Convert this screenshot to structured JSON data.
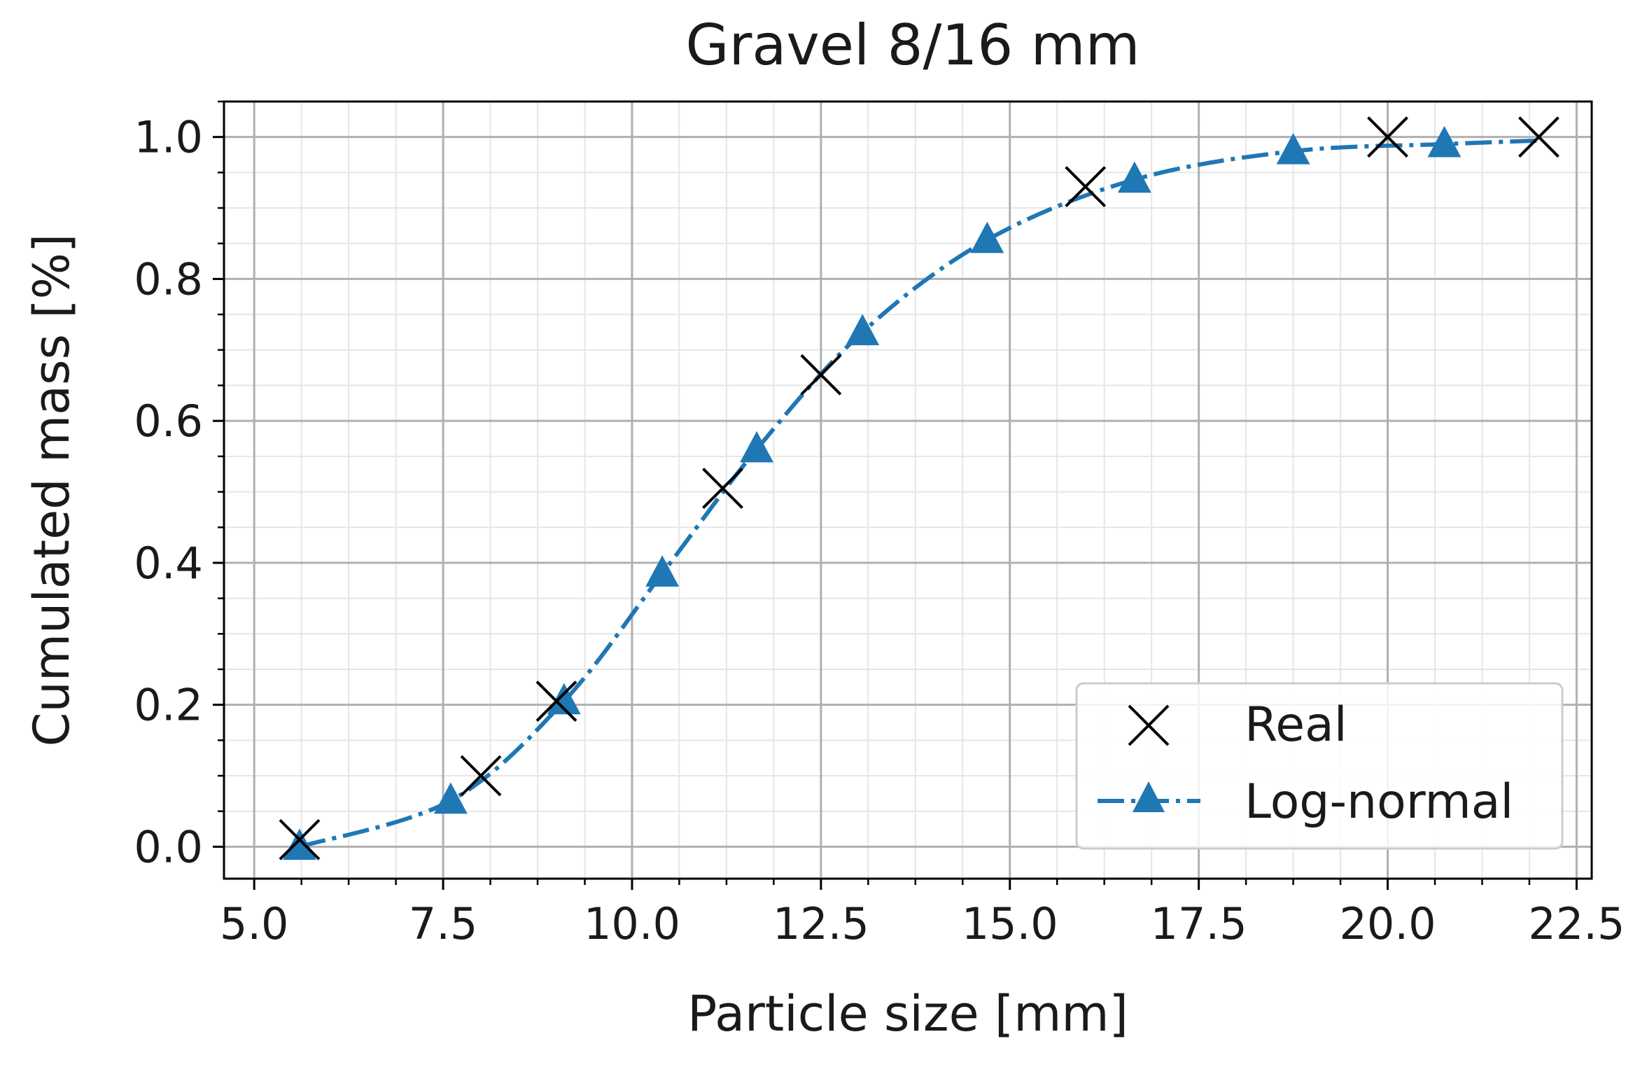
{
  "chart_data": {
    "type": "line",
    "title": "Gravel 8/16 mm",
    "xlabel": "Particle size [mm]",
    "ylabel": "Cumulated mass [%]",
    "xlim": [
      4.6,
      22.7
    ],
    "ylim": [
      -0.045,
      1.05
    ],
    "xticks": [
      5.0,
      7.5,
      10.0,
      12.5,
      15.0,
      17.5,
      20.0,
      22.5
    ],
    "yticks": [
      0.0,
      0.2,
      0.4,
      0.6,
      0.8,
      1.0
    ],
    "xtick_labels": [
      "5.0",
      "7.5",
      "10.0",
      "12.5",
      "15.0",
      "17.5",
      "20.0",
      "22.5"
    ],
    "ytick_labels": [
      "0.0",
      "0.2",
      "0.4",
      "0.6",
      "0.8",
      "1.0"
    ],
    "grid": true,
    "minor_grid": true,
    "legend_position": "lower-right",
    "series": [
      {
        "name": "Real",
        "kind": "markers",
        "marker": "x",
        "color": "#000000",
        "x": [
          5.6,
          8.0,
          9.0,
          11.2,
          12.5,
          16.0,
          20.0,
          22.0
        ],
        "y": [
          0.01,
          0.1,
          0.205,
          0.505,
          0.665,
          0.93,
          1.0,
          1.0
        ]
      },
      {
        "name": "Log-normal",
        "kind": "line-markers",
        "marker": "triangle",
        "linestyle": "dashdot",
        "color": "#1f77b4",
        "x": [
          5.6,
          7.6,
          9.1,
          10.4,
          11.65,
          13.05,
          14.7,
          16.65,
          18.75,
          20.75
        ],
        "y": [
          0.0,
          0.065,
          0.205,
          0.385,
          0.56,
          0.725,
          0.855,
          0.94,
          0.98,
          0.99
        ]
      }
    ]
  }
}
